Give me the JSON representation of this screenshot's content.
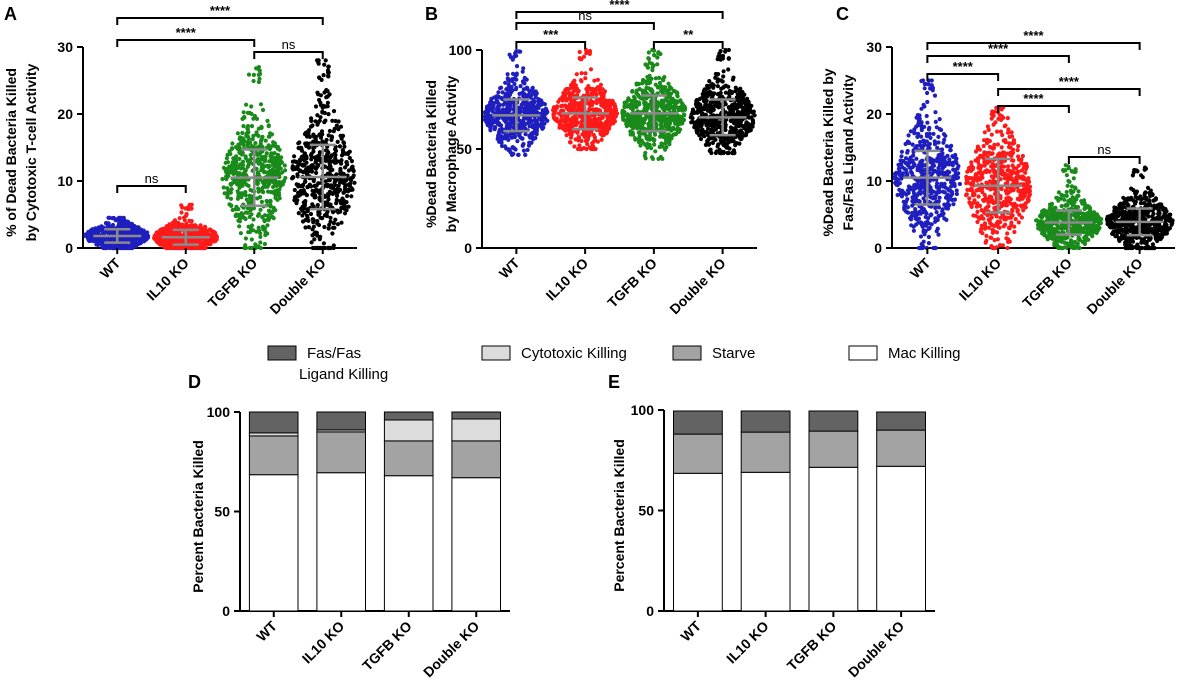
{
  "colors": {
    "wt": "#1f1fbf",
    "il10": "#ff1a1a",
    "tgfb": "#1a8a1a",
    "double": "#000000",
    "errorbar": "#8a8a8a",
    "fas": "#636363",
    "cyto": "#dcdcdc",
    "starve": "#a3a3a3",
    "mac": "#ffffff"
  },
  "legend": {
    "items": [
      {
        "label_line1": "Fas/Fas",
        "label_line2": "Ligand Killing",
        "color_key": "fas"
      },
      {
        "label_line1": "Cytotoxic Killing",
        "label_line2": "",
        "color_key": "cyto"
      },
      {
        "label_line1": "Starve",
        "label_line2": "",
        "color_key": "starve"
      },
      {
        "label_line1": "Mac Killing",
        "label_line2": "",
        "color_key": "mac"
      }
    ]
  },
  "chart_data": [
    {
      "panel": "A",
      "type": "scatter",
      "ylabel_line1": "% of Dead Bacteria Killed",
      "ylabel_line2": "by Cytotoxic T-cell Activity",
      "ylim": [
        0,
        30
      ],
      "yticks": [
        0,
        10,
        20,
        30
      ],
      "categories": [
        "WT",
        "IL10 KO",
        "TGFB KO",
        "Double KO"
      ],
      "groups": [
        {
          "mean": 1.8,
          "sd": 1.0,
          "min": 0,
          "max": 4.5,
          "color_key": "wt"
        },
        {
          "mean": 1.6,
          "sd": 1.1,
          "min": 0,
          "max": 6.5,
          "color_key": "il10"
        },
        {
          "mean": 10.5,
          "sd": 4.2,
          "min": 0,
          "max": 27,
          "color_key": "tgfb"
        },
        {
          "mean": 10.6,
          "sd": 4.8,
          "min": 0,
          "max": 28,
          "color_key": "double"
        }
      ],
      "significance": [
        {
          "from": 0,
          "to": 3,
          "label": "****"
        },
        {
          "from": 0,
          "to": 2,
          "label": "****"
        },
        {
          "from": 2,
          "to": 3,
          "label": "ns"
        },
        {
          "from": 0,
          "to": 1,
          "label": "ns"
        }
      ]
    },
    {
      "panel": "B",
      "type": "scatter",
      "ylabel_line1": "%Dead Bacteria Killed",
      "ylabel_line2": "by Macrophage Activity",
      "ylim": [
        0,
        100
      ],
      "yticks": [
        0,
        50,
        100
      ],
      "categories": [
        "WT",
        "IL10 KO",
        "TGFB KO",
        "Double KO"
      ],
      "groups": [
        {
          "mean": 67,
          "sd": 8,
          "min": 47,
          "max": 100,
          "color_key": "wt"
        },
        {
          "mean": 68,
          "sd": 8,
          "min": 50,
          "max": 100,
          "color_key": "il10"
        },
        {
          "mean": 68,
          "sd": 9,
          "min": 45,
          "max": 100,
          "color_key": "tgfb"
        },
        {
          "mean": 66,
          "sd": 9,
          "min": 48,
          "max": 100,
          "color_key": "double"
        }
      ],
      "significance": [
        {
          "from": 0,
          "to": 3,
          "label": "****"
        },
        {
          "from": 0,
          "to": 2,
          "label": "ns"
        },
        {
          "from": 0,
          "to": 1,
          "label": "***"
        },
        {
          "from": 2,
          "to": 3,
          "label": "**"
        }
      ]
    },
    {
      "panel": "C",
      "type": "scatter",
      "ylabel_line1": "%Dead Bacteria Killed by",
      "ylabel_line2": "Fas/Fas Ligand Activity",
      "ylim": [
        0,
        30
      ],
      "yticks": [
        0,
        10,
        20,
        30
      ],
      "categories": [
        "WT",
        "IL10 KO",
        "TGFB KO",
        "Double KO"
      ],
      "groups": [
        {
          "mean": 10.5,
          "sd": 4.0,
          "min": 0,
          "max": 25,
          "color_key": "wt"
        },
        {
          "mean": 9.3,
          "sd": 4.0,
          "min": 0,
          "max": 21,
          "color_key": "il10"
        },
        {
          "mean": 3.8,
          "sd": 1.8,
          "min": 0,
          "max": 12.5,
          "color_key": "tgfb"
        },
        {
          "mean": 3.9,
          "sd": 2.0,
          "min": 0,
          "max": 12,
          "color_key": "double"
        }
      ],
      "significance": [
        {
          "from": 0,
          "to": 3,
          "label": "****"
        },
        {
          "from": 0,
          "to": 2,
          "label": "****"
        },
        {
          "from": 1,
          "to": 3,
          "label": "****"
        },
        {
          "from": 0,
          "to": 1,
          "label": "****"
        },
        {
          "from": 1,
          "to": 2,
          "label": "****"
        },
        {
          "from": 2,
          "to": 3,
          "label": "ns"
        }
      ]
    },
    {
      "panel": "D",
      "type": "bar",
      "stacked": true,
      "ylabel": "Percent Bacteria Killed",
      "ylim": [
        0,
        100
      ],
      "yticks": [
        0,
        50,
        100
      ],
      "categories": [
        "WT",
        "IL10 KO",
        "TGFB KO",
        "Double KO"
      ],
      "series": [
        {
          "name": "Mac Killing",
          "color_key": "mac",
          "values": [
            68.5,
            69.5,
            68,
            67
          ]
        },
        {
          "name": "Starve",
          "color_key": "starve",
          "values": [
            19.5,
            20.5,
            17.5,
            18.5
          ]
        },
        {
          "name": "Cytotoxic Killing",
          "color_key": "cyto",
          "values": [
            1.5,
            1,
            10.5,
            11
          ]
        },
        {
          "name": "Fas/Fas Ligand Killing",
          "color_key": "fas",
          "values": [
            10.5,
            9,
            4,
            3.5
          ]
        }
      ]
    },
    {
      "panel": "E",
      "type": "bar",
      "stacked": true,
      "ylabel": "Percent Bacteria Killed",
      "ylim": [
        0,
        100
      ],
      "yticks": [
        0,
        50,
        100
      ],
      "categories": [
        "WT",
        "IL10 KO",
        "TGFB KO",
        "Double KO"
      ],
      "series": [
        {
          "name": "Mac Killing",
          "color_key": "mac",
          "values": [
            68.5,
            69,
            71.5,
            72
          ]
        },
        {
          "name": "Starve",
          "color_key": "starve",
          "values": [
            19.5,
            20,
            18,
            18
          ]
        },
        {
          "name": "Cytotoxic Killing",
          "color_key": "cyto",
          "values": [
            0,
            0,
            0,
            0
          ]
        },
        {
          "name": "Fas/Fas Ligand Killing",
          "color_key": "fas",
          "values": [
            11.5,
            10.5,
            10,
            9
          ]
        }
      ]
    }
  ]
}
